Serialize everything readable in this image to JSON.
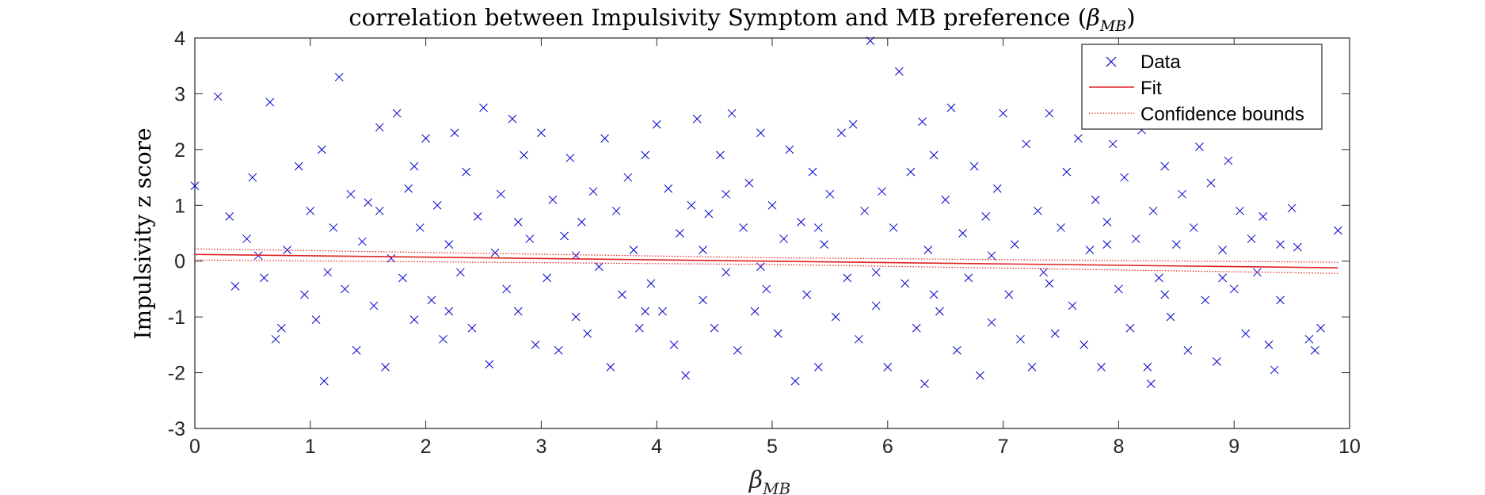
{
  "chart_data": {
    "type": "scatter",
    "title_prefix": "correlation between Impulsivity Symptom and MB preference (",
    "title_math_base": "β",
    "title_math_sub": "MB",
    "title_suffix": ")",
    "ylabel": "Impulsivity z score",
    "xlabel_base": "β",
    "xlabel_sub": "MB",
    "xlim": [
      0,
      10
    ],
    "ylim": [
      -3,
      4
    ],
    "xticks": [
      "0",
      "1",
      "2",
      "3",
      "4",
      "5",
      "6",
      "7",
      "8",
      "9",
      "10"
    ],
    "yticks": [
      "-3",
      "-2",
      "-1",
      "0",
      "1",
      "2",
      "3",
      "4"
    ],
    "grid": false,
    "legend_position": "top-right",
    "legend": [
      "Data",
      "Fit",
      "Confidence bounds"
    ],
    "colors": {
      "data": "#0000cc",
      "fit": "#e02020",
      "bounds": "#e02020",
      "axes": "#262626"
    },
    "fit": {
      "x": [
        0,
        9.9
      ],
      "y": [
        0.12,
        -0.12
      ]
    },
    "confidence_upper": {
      "x": [
        0,
        5,
        9.9
      ],
      "y": [
        0.22,
        0.06,
        -0.02
      ]
    },
    "confidence_lower": {
      "x": [
        0,
        5,
        9.9
      ],
      "y": [
        0.02,
        -0.06,
        -0.22
      ]
    },
    "series": [
      {
        "name": "Data",
        "marker": "x",
        "points": [
          [
            0.0,
            1.35
          ],
          [
            0.2,
            2.95
          ],
          [
            0.3,
            0.8
          ],
          [
            0.35,
            -0.45
          ],
          [
            0.5,
            1.5
          ],
          [
            0.55,
            0.1
          ],
          [
            0.6,
            -0.3
          ],
          [
            0.65,
            2.85
          ],
          [
            0.7,
            -1.4
          ],
          [
            0.75,
            -1.2
          ],
          [
            0.8,
            0.2
          ],
          [
            0.9,
            1.7
          ],
          [
            0.95,
            -0.6
          ],
          [
            1.0,
            0.9
          ],
          [
            1.05,
            -1.05
          ],
          [
            1.1,
            2.0
          ],
          [
            1.12,
            -2.15
          ],
          [
            1.2,
            0.6
          ],
          [
            1.25,
            3.3
          ],
          [
            1.3,
            -0.5
          ],
          [
            1.35,
            1.2
          ],
          [
            1.4,
            -1.6
          ],
          [
            1.45,
            0.35
          ],
          [
            1.5,
            1.05
          ],
          [
            1.55,
            -0.8
          ],
          [
            1.6,
            2.4
          ],
          [
            1.65,
            -1.9
          ],
          [
            1.7,
            0.05
          ],
          [
            1.75,
            2.65
          ],
          [
            1.8,
            -0.3
          ],
          [
            1.85,
            1.3
          ],
          [
            1.9,
            -1.05
          ],
          [
            1.95,
            0.6
          ],
          [
            2.0,
            2.2
          ],
          [
            2.05,
            -0.7
          ],
          [
            2.1,
            1.0
          ],
          [
            2.15,
            -1.4
          ],
          [
            2.2,
            0.3
          ],
          [
            2.25,
            2.3
          ],
          [
            2.3,
            -0.2
          ],
          [
            2.35,
            1.6
          ],
          [
            2.4,
            -1.2
          ],
          [
            2.45,
            0.8
          ],
          [
            2.5,
            2.75
          ],
          [
            2.55,
            -1.85
          ],
          [
            2.6,
            0.15
          ],
          [
            2.65,
            1.2
          ],
          [
            2.7,
            -0.5
          ],
          [
            2.75,
            2.55
          ],
          [
            2.8,
            -0.9
          ],
          [
            2.85,
            1.9
          ],
          [
            2.9,
            0.4
          ],
          [
            2.95,
            -1.5
          ],
          [
            3.0,
            2.3
          ],
          [
            3.05,
            -0.3
          ],
          [
            3.1,
            1.1
          ],
          [
            3.15,
            -1.6
          ],
          [
            3.2,
            0.45
          ],
          [
            3.25,
            1.85
          ],
          [
            3.3,
            -1.0
          ],
          [
            3.35,
            0.7
          ],
          [
            3.4,
            -1.3
          ],
          [
            3.45,
            1.25
          ],
          [
            3.5,
            -0.1
          ],
          [
            3.55,
            2.2
          ],
          [
            3.6,
            -1.9
          ],
          [
            3.65,
            0.9
          ],
          [
            3.7,
            -0.6
          ],
          [
            3.75,
            1.5
          ],
          [
            3.8,
            0.2
          ],
          [
            3.85,
            -1.2
          ],
          [
            3.9,
            1.9
          ],
          [
            3.95,
            -0.4
          ],
          [
            4.0,
            2.45
          ],
          [
            4.05,
            -0.9
          ],
          [
            4.1,
            1.3
          ],
          [
            4.15,
            -1.5
          ],
          [
            4.2,
            0.5
          ],
          [
            4.25,
            -2.05
          ],
          [
            4.3,
            1.0
          ],
          [
            4.35,
            2.55
          ],
          [
            4.4,
            -0.7
          ],
          [
            4.45,
            0.85
          ],
          [
            4.5,
            -1.2
          ],
          [
            4.55,
            1.9
          ],
          [
            4.6,
            -0.2
          ],
          [
            4.65,
            2.65
          ],
          [
            4.7,
            -1.6
          ],
          [
            4.75,
            0.6
          ],
          [
            4.8,
            1.4
          ],
          [
            4.85,
            -0.9
          ],
          [
            4.9,
            2.3
          ],
          [
            4.95,
            -0.5
          ],
          [
            5.0,
            1.0
          ],
          [
            5.05,
            -1.3
          ],
          [
            5.1,
            0.4
          ],
          [
            5.15,
            2.0
          ],
          [
            5.2,
            -2.15
          ],
          [
            5.25,
            0.7
          ],
          [
            5.3,
            -0.6
          ],
          [
            5.35,
            1.6
          ],
          [
            5.4,
            -1.9
          ],
          [
            5.45,
            0.3
          ],
          [
            5.5,
            1.2
          ],
          [
            5.55,
            -1.0
          ],
          [
            5.6,
            2.3
          ],
          [
            5.65,
            -0.3
          ],
          [
            5.7,
            2.45
          ],
          [
            5.75,
            -1.4
          ],
          [
            5.8,
            0.9
          ],
          [
            5.85,
            3.95
          ],
          [
            5.9,
            -0.8
          ],
          [
            5.95,
            1.25
          ],
          [
            6.0,
            -1.9
          ],
          [
            6.05,
            0.6
          ],
          [
            6.1,
            3.4
          ],
          [
            6.15,
            -0.4
          ],
          [
            6.2,
            1.6
          ],
          [
            6.25,
            -1.2
          ],
          [
            6.3,
            2.5
          ],
          [
            6.32,
            -2.2
          ],
          [
            6.35,
            0.2
          ],
          [
            6.4,
            1.9
          ],
          [
            6.45,
            -0.9
          ],
          [
            6.5,
            1.1
          ],
          [
            6.55,
            2.75
          ],
          [
            6.6,
            -1.6
          ],
          [
            6.65,
            0.5
          ],
          [
            6.7,
            -0.3
          ],
          [
            6.75,
            1.7
          ],
          [
            6.8,
            -2.05
          ],
          [
            6.85,
            0.8
          ],
          [
            6.9,
            -1.1
          ],
          [
            6.95,
            1.3
          ],
          [
            7.0,
            2.65
          ],
          [
            7.05,
            -0.6
          ],
          [
            7.1,
            0.3
          ],
          [
            7.15,
            -1.4
          ],
          [
            7.2,
            2.1
          ],
          [
            7.25,
            -1.9
          ],
          [
            7.3,
            0.9
          ],
          [
            7.35,
            -0.2
          ],
          [
            7.4,
            2.65
          ],
          [
            7.45,
            -1.3
          ],
          [
            7.5,
            0.6
          ],
          [
            7.55,
            1.6
          ],
          [
            7.6,
            -0.8
          ],
          [
            7.65,
            2.2
          ],
          [
            7.7,
            -1.5
          ],
          [
            7.75,
            0.2
          ],
          [
            7.8,
            1.1
          ],
          [
            7.85,
            -1.9
          ],
          [
            7.9,
            0.7
          ],
          [
            7.95,
            2.1
          ],
          [
            8.0,
            -0.5
          ],
          [
            8.05,
            1.5
          ],
          [
            8.1,
            -1.2
          ],
          [
            8.15,
            0.4
          ],
          [
            8.2,
            2.35
          ],
          [
            8.25,
            -1.9
          ],
          [
            8.28,
            -2.2
          ],
          [
            8.3,
            0.9
          ],
          [
            8.35,
            -0.3
          ],
          [
            8.4,
            1.7
          ],
          [
            8.45,
            -1.0
          ],
          [
            8.5,
            0.3
          ],
          [
            8.55,
            1.2
          ],
          [
            8.6,
            -1.6
          ],
          [
            8.65,
            0.6
          ],
          [
            8.7,
            2.05
          ],
          [
            8.75,
            -0.7
          ],
          [
            8.8,
            1.4
          ],
          [
            8.85,
            -1.8
          ],
          [
            8.9,
            0.2
          ],
          [
            8.95,
            1.8
          ],
          [
            9.0,
            -0.5
          ],
          [
            9.05,
            0.9
          ],
          [
            9.1,
            -1.3
          ],
          [
            9.15,
            0.4
          ],
          [
            9.2,
            -0.2
          ],
          [
            9.25,
            0.8
          ],
          [
            9.3,
            -1.5
          ],
          [
            9.35,
            -1.95
          ],
          [
            9.4,
            0.3
          ],
          [
            9.5,
            0.95
          ],
          [
            9.55,
            0.25
          ],
          [
            9.65,
            -1.4
          ],
          [
            9.7,
            -1.6
          ],
          [
            9.75,
            -1.2
          ],
          [
            9.9,
            0.55
          ],
          [
            0.45,
            0.4
          ],
          [
            1.15,
            -0.2
          ],
          [
            1.6,
            0.9
          ],
          [
            2.2,
            -0.9
          ],
          [
            2.8,
            0.7
          ],
          [
            3.3,
            0.1
          ],
          [
            3.9,
            -0.9
          ],
          [
            4.4,
            0.2
          ],
          [
            4.9,
            -0.1
          ],
          [
            5.4,
            0.6
          ],
          [
            5.9,
            -0.2
          ],
          [
            6.4,
            -0.6
          ],
          [
            6.9,
            0.1
          ],
          [
            7.4,
            -0.4
          ],
          [
            7.9,
            0.3
          ],
          [
            8.4,
            -0.6
          ],
          [
            8.9,
            -0.3
          ],
          [
            9.4,
            -0.7
          ],
          [
            1.9,
            1.7
          ],
          [
            4.6,
            1.2
          ]
        ]
      }
    ]
  }
}
